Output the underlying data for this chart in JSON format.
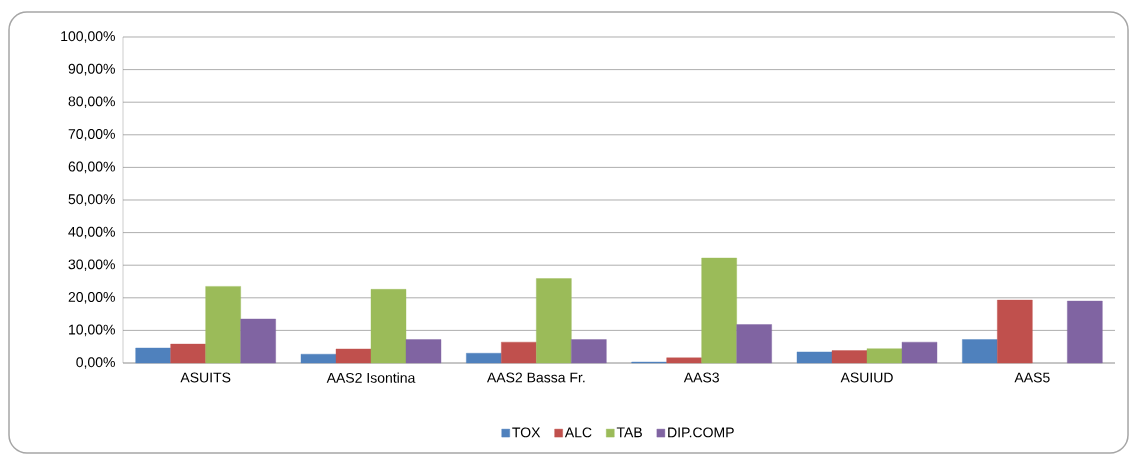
{
  "chart_data": {
    "type": "bar",
    "categories": [
      "ASUITS",
      "AAS2 Isontina",
      "AAS2 Bassa Fr.",
      "AAS3",
      "ASUIUD",
      "AAS5"
    ],
    "series": [
      {
        "name": "TOX",
        "color": "#4f81bd",
        "values": [
          4.6,
          2.7,
          3.0,
          0.3,
          3.4,
          7.2
        ]
      },
      {
        "name": "ALC",
        "color": "#c0504d",
        "values": [
          5.8,
          4.3,
          6.4,
          1.6,
          3.8,
          19.3
        ]
      },
      {
        "name": "TAB",
        "color": "#9bbb59",
        "values": [
          23.5,
          22.6,
          25.9,
          32.2,
          4.4,
          null
        ]
      },
      {
        "name": "DIP.COMP",
        "color": "#8064a2",
        "values": [
          13.5,
          7.2,
          7.2,
          11.8,
          6.4,
          19.0
        ]
      }
    ],
    "ylim": [
      0,
      100
    ],
    "yticks": [
      {
        "value": 0,
        "label": "0,00%"
      },
      {
        "value": 10,
        "label": "10,00%"
      },
      {
        "value": 20,
        "label": "20,00%"
      },
      {
        "value": 30,
        "label": "30,00%"
      },
      {
        "value": 40,
        "label": "40,00%"
      },
      {
        "value": 50,
        "label": "50,00%"
      },
      {
        "value": 60,
        "label": "60,00%"
      },
      {
        "value": 70,
        "label": "70,00%"
      },
      {
        "value": 80,
        "label": "80,00%"
      },
      {
        "value": 90,
        "label": "90,00%"
      },
      {
        "value": 100,
        "label": "100,00%"
      }
    ],
    "grid": "y",
    "legend": "bottom"
  }
}
